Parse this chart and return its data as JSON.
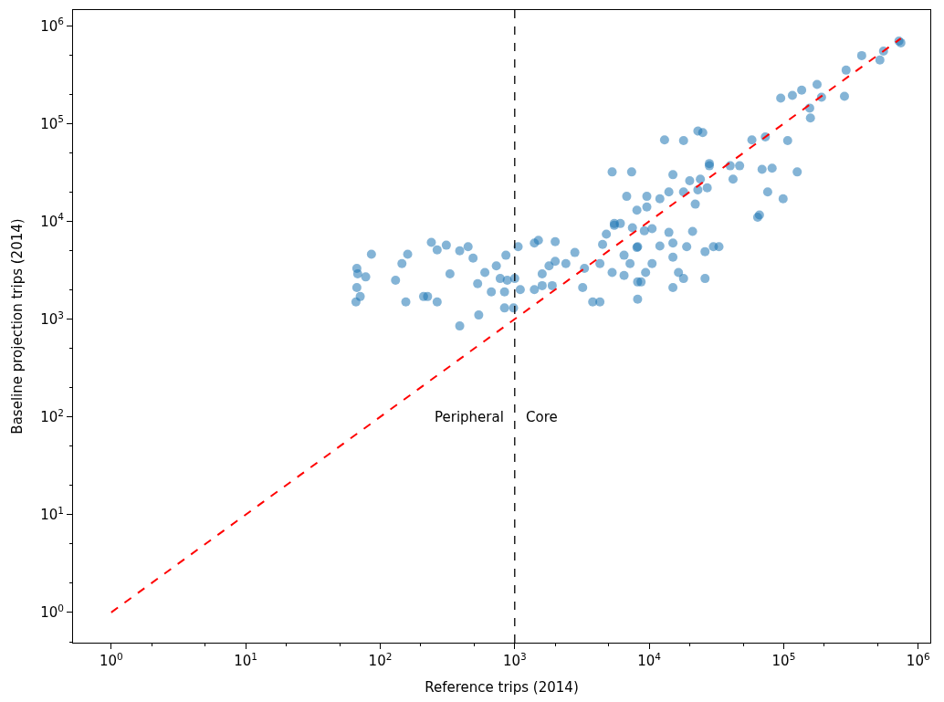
{
  "chart_data": {
    "type": "scatter",
    "xlabel": "Reference trips (2014)",
    "ylabel": "Baseline projection trips (2014)",
    "log": "xy",
    "marker": "circle",
    "xlim": [
      0.52,
      1230000
    ],
    "ylim": [
      0.49,
      1450000
    ],
    "xticks": [
      {
        "value": 1,
        "label": "10$^{0}$"
      },
      {
        "value": 10,
        "label": "10$^{1}$"
      },
      {
        "value": 100,
        "label": "10$^{2}$"
      },
      {
        "value": 1000,
        "label": "10$^{3}$"
      },
      {
        "value": 10000,
        "label": "10$^{4}$"
      },
      {
        "value": 100000,
        "label": "10$^{5}$"
      },
      {
        "value": 1000000,
        "label": "10$^{6}$"
      }
    ],
    "yticks": [
      {
        "value": 1,
        "label": "10$^{0}$"
      },
      {
        "value": 10,
        "label": "10$^{1}$"
      },
      {
        "value": 100,
        "label": "10$^{2}$"
      },
      {
        "value": 1000,
        "label": "10$^{3}$"
      },
      {
        "value": 10000,
        "label": "10$^{4}$"
      },
      {
        "value": 100000,
        "label": "10$^{5}$"
      },
      {
        "value": 1000000,
        "label": "10$^{6}$"
      }
    ],
    "series": [
      {
        "color": "#1f77b4",
        "x": [
          86,
          67,
          68,
          78,
          67,
          71,
          66,
          130,
          145,
          160,
          155,
          210,
          225,
          265,
          240,
          265,
          310,
          330,
          390,
          450,
          490,
          390,
          530,
          540,
          600,
          670,
          780,
          860,
          840,
          880,
          840,
          980,
          1000,
          1100,
          730,
          1060,
          1400,
          1500,
          2000,
          1400,
          1600,
          1600,
          1800,
          1900,
          2000,
          2400,
          2800,
          3200,
          3800,
          4300,
          3300,
          4300,
          4800,
          5500,
          5300,
          6500,
          6500,
          7200,
          8100,
          8200,
          8200,
          5300,
          7400,
          15000,
          20000,
          24000,
          28000,
          42000,
          6800,
          9600,
          9600,
          12000,
          14000,
          18000,
          23000,
          22000,
          27000,
          8100,
          5500,
          6100,
          7500,
          4500,
          9200,
          10500,
          14000,
          21000,
          8200,
          12000,
          15000,
          19000,
          26000,
          30000,
          33000,
          10500,
          15000,
          9400,
          8700,
          16500,
          18000,
          26000,
          15000,
          64000,
          13000,
          18000,
          23000,
          25000,
          28000,
          58000,
          73000,
          107000,
          158000,
          40000,
          47000,
          69000,
          82000,
          126000,
          76000,
          99000,
          66000,
          95000,
          116000,
          136000,
          177000,
          191000,
          156000,
          283000,
          291000,
          380000,
          519000,
          552000,
          719000,
          743000
        ],
        "values": [
          4600,
          3300,
          2900,
          2700,
          2100,
          1700,
          1500,
          2500,
          3700,
          4600,
          1500,
          1700,
          1700,
          1500,
          6100,
          5100,
          5700,
          2900,
          5000,
          5500,
          4200,
          850,
          2300,
          1100,
          3000,
          1900,
          2600,
          4500,
          1900,
          2500,
          1300,
          1300,
          2600,
          2000,
          3500,
          5500,
          6000,
          6400,
          6200,
          2000,
          2900,
          2200,
          3500,
          2200,
          3900,
          3700,
          4800,
          2100,
          1500,
          1500,
          3300,
          3700,
          7400,
          9100,
          3000,
          2800,
          4500,
          3700,
          5400,
          2400,
          1600,
          32000,
          32000,
          30000,
          26000,
          27000,
          37000,
          27000,
          18000,
          18000,
          14000,
          17000,
          20000,
          20000,
          21000,
          15000,
          22000,
          13000,
          9500,
          9500,
          8600,
          5800,
          8000,
          8400,
          7700,
          7900,
          5500,
          5600,
          6000,
          5500,
          4900,
          5500,
          5500,
          3700,
          4300,
          3000,
          2400,
          3000,
          2600,
          2600,
          2100,
          11000,
          68000,
          67000,
          84000,
          81000,
          39000,
          68000,
          73000,
          67000,
          114000,
          37000,
          37000,
          34000,
          35000,
          32000,
          20000,
          17000,
          11600,
          182000,
          194000,
          220000,
          251000,
          186000,
          144000,
          190000,
          352000,
          496000,
          446000,
          552000,
          698000,
          670000
        ]
      },
      {
        "type": "line",
        "color": "#ff0000",
        "line_style": "dashed",
        "marker": "none",
        "x": [
          1,
          743000
        ],
        "values": [
          1,
          743000
        ]
      }
    ],
    "ref_lines": [
      {
        "axis": "x",
        "value": 1000,
        "color": "#000000",
        "line_style": "dashed"
      }
    ],
    "annotations": [
      "Peripheral",
      "Core"
    ]
  }
}
